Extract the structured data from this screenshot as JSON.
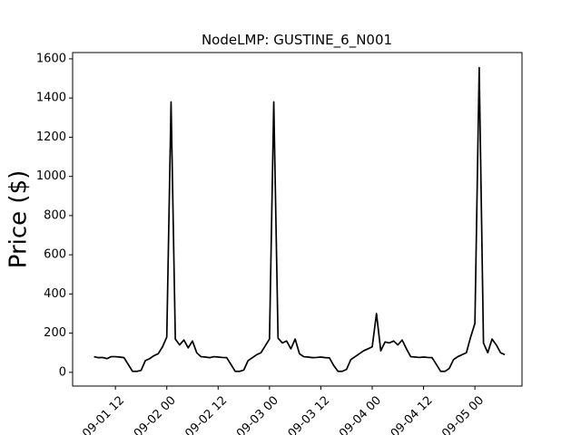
{
  "chart_data": {
    "type": "line",
    "title": "NodeLMP: GUSTINE_6_N001",
    "ylabel": "Price ($)",
    "x": [
      "09-01 07",
      "09-01 08",
      "09-01 09",
      "09-01 10",
      "09-01 11",
      "09-01 12",
      "09-01 13",
      "09-01 14",
      "09-01 15",
      "09-01 16",
      "09-01 17",
      "09-01 18",
      "09-01 19",
      "09-01 20",
      "09-01 21",
      "09-01 22",
      "09-01 23",
      "09-02 00",
      "09-02 01",
      "09-02 02",
      "09-02 03",
      "09-02 04",
      "09-02 05",
      "09-02 06",
      "09-02 07",
      "09-02 08",
      "09-02 09",
      "09-02 10",
      "09-02 11",
      "09-02 12",
      "09-02 13",
      "09-02 14",
      "09-02 15",
      "09-02 16",
      "09-02 17",
      "09-02 18",
      "09-02 19",
      "09-02 20",
      "09-02 21",
      "09-02 22",
      "09-02 23",
      "09-03 00",
      "09-03 01",
      "09-03 02",
      "09-03 03",
      "09-03 04",
      "09-03 05",
      "09-03 06",
      "09-03 07",
      "09-03 08",
      "09-03 09",
      "09-03 10",
      "09-03 11",
      "09-03 12",
      "09-03 13",
      "09-03 14",
      "09-03 15",
      "09-03 16",
      "09-03 17",
      "09-03 18",
      "09-03 19",
      "09-03 20",
      "09-03 21",
      "09-03 22",
      "09-03 23",
      "09-04 00",
      "09-04 01",
      "09-04 02",
      "09-04 03",
      "09-04 04",
      "09-04 05",
      "09-04 06",
      "09-04 07",
      "09-04 08",
      "09-04 09",
      "09-04 10",
      "09-04 11",
      "09-04 12",
      "09-04 13",
      "09-04 14",
      "09-04 15",
      "09-04 16",
      "09-04 17",
      "09-04 18",
      "09-04 19",
      "09-04 20",
      "09-04 21",
      "09-04 22",
      "09-04 23",
      "09-05 00",
      "09-05 01",
      "09-05 02",
      "09-05 03",
      "09-05 04",
      "09-05 05",
      "09-05 06",
      "09-05 07"
    ],
    "series": [
      {
        "color": "#000000",
        "values": [
          80,
          75,
          76,
          70,
          80,
          80,
          78,
          75,
          40,
          5,
          5,
          10,
          60,
          70,
          85,
          95,
          130,
          180,
          1380,
          170,
          140,
          165,
          125,
          160,
          100,
          80,
          78,
          75,
          80,
          78,
          76,
          75,
          40,
          5,
          5,
          12,
          60,
          75,
          90,
          100,
          135,
          170,
          1380,
          175,
          150,
          160,
          120,
          170,
          95,
          80,
          78,
          75,
          76,
          78,
          75,
          74,
          35,
          5,
          5,
          15,
          65,
          80,
          95,
          110,
          120,
          130,
          300,
          110,
          155,
          150,
          160,
          140,
          165,
          120,
          80,
          78,
          76,
          78,
          76,
          75,
          40,
          5,
          5,
          20,
          65,
          80,
          90,
          100,
          180,
          250,
          1555,
          150,
          100,
          170,
          140,
          100,
          90
        ]
      }
    ],
    "xlim": [
      "09-01 02",
      "09-05 11"
    ],
    "xticks": [
      "09-01 12",
      "09-02 00",
      "09-02 12",
      "09-03 00",
      "09-03 12",
      "09-04 00",
      "09-04 12",
      "09-05 00"
    ],
    "ylim": [
      -70,
      1632
    ],
    "yticks": [
      0,
      200,
      400,
      600,
      800,
      1000,
      1200,
      1400,
      1600
    ]
  }
}
